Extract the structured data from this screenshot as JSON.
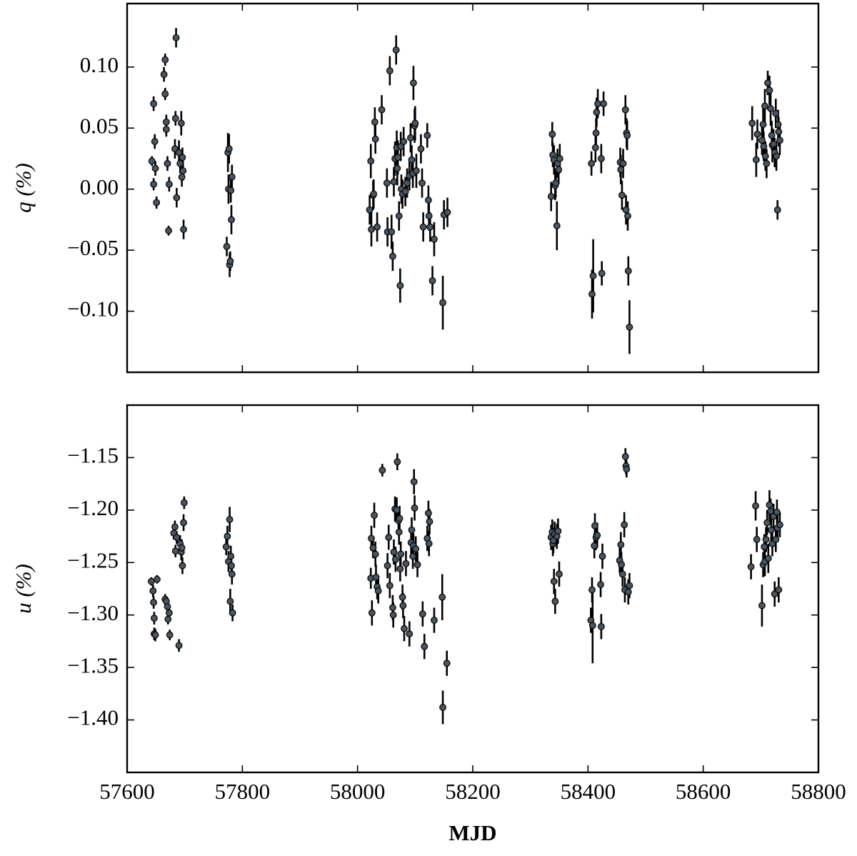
{
  "chart_data": [
    {
      "type": "scatter",
      "ylabel": "q (%)",
      "xlim": [
        57600,
        58800
      ],
      "ylim": [
        -0.15,
        0.152
      ],
      "xticks": [
        57600,
        57800,
        58000,
        58200,
        58400,
        58600,
        58800
      ],
      "show_xticklabels": false,
      "yticks": [
        {
          "value": -0.1,
          "label": "−0.10"
        },
        {
          "value": -0.05,
          "label": "−0.05"
        },
        {
          "value": 0,
          "label": "0.00"
        },
        {
          "value": 0.05,
          "label": "0.05"
        },
        {
          "value": 0.1,
          "label": "0.10"
        }
      ],
      "color": "#4a5560",
      "edgecolor": "#000000",
      "x": [
        57643,
        57646,
        57646,
        57648,
        57649,
        57651,
        57664,
        57666,
        57666,
        57668,
        57668,
        57670,
        57672,
        57673,
        57683,
        57684,
        57685,
        57686,
        57690,
        57692,
        57694,
        57695,
        57696,
        57697,
        57698,
        57773,
        57775,
        57776,
        57777,
        57778,
        57779,
        57780,
        57781,
        57782,
        58021,
        58023,
        58024,
        58027,
        58028,
        58030,
        58031,
        58034,
        58042,
        58051,
        58052,
        58056,
        58059,
        58061,
        58063,
        58065,
        58067,
        58068,
        58069,
        58070,
        58072,
        58074,
        58075,
        58076,
        58078,
        58080,
        58083,
        58086,
        58090,
        58092,
        58094,
        58096,
        58097,
        58099,
        58100,
        58102,
        58110,
        58112,
        58114,
        58121,
        58123,
        58124,
        58126,
        58130,
        58133,
        58148,
        58150,
        58156,
        58336,
        58338,
        58339,
        58341,
        58343,
        58344,
        58346,
        58347,
        58349,
        58351,
        58406,
        58407,
        58409,
        58413,
        58414,
        58415,
        58417,
        58423,
        58424,
        58427,
        58456,
        58457,
        58459,
        58461,
        58465,
        58466,
        58467,
        58468,
        58469,
        58470,
        58472,
        58685,
        58692,
        58694,
        58702,
        58704,
        58705,
        58707,
        58708,
        58710,
        58712,
        58715,
        58717,
        58719,
        58720,
        58722,
        58724,
        58726,
        58727,
        58729,
        58730,
        58731,
        58733
      ],
      "values": [
        0.023,
        0.07,
        0.004,
        0.039,
        0.017,
        -0.011,
        0.094,
        0.106,
        0.078,
        0.055,
        0.049,
        0.021,
        -0.034,
        0.004,
        0.033,
        0.058,
        0.124,
        -0.007,
        0.03,
        0.021,
        0.054,
        0.01,
        0.026,
        0.015,
        -0.033,
        -0.047,
        0.03,
        0.0,
        0.033,
        -0.062,
        -0.059,
        -0.001,
        -0.025,
        0.01,
        -0.017,
        0.023,
        -0.033,
        -0.005,
        -0.004,
        0.055,
        0.041,
        -0.031,
        0.065,
        0.005,
        -0.035,
        0.097,
        -0.035,
        -0.055,
        0.006,
        0.025,
        0.114,
        0.034,
        0.017,
        0.026,
        -0.022,
        -0.079,
        0.035,
        0.0,
        -0.004,
        0.039,
        -0.002,
        0.005,
        0.011,
        0.042,
        0.024,
        0.013,
        0.087,
        0.052,
        0.054,
        0.015,
        0.033,
        0.005,
        -0.031,
        0.044,
        -0.009,
        -0.022,
        -0.031,
        -0.075,
        -0.041,
        -0.093,
        -0.021,
        -0.019,
        -0.006,
        0.045,
        0.028,
        0.024,
        0.003,
        0.005,
        -0.03,
        0.021,
        0.016,
        0.025,
        0.021,
        -0.086,
        -0.071,
        0.034,
        0.046,
        0.063,
        0.07,
        0.025,
        -0.069,
        0.07,
        0.022,
        0.016,
        -0.005,
        0.021,
        0.065,
        -0.017,
        0.046,
        0.044,
        -0.022,
        -0.067,
        -0.113,
        0.054,
        0.024,
        0.045,
        0.04,
        0.053,
        0.035,
        0.068,
        0.027,
        0.021,
        0.087,
        0.081,
        0.066,
        0.044,
        0.036,
        0.037,
        0.03,
        0.062,
        0.027,
        -0.017,
        0.053,
        0.047,
        0.04
      ],
      "errors": [
        0.004,
        0.006,
        0.005,
        0.006,
        0.006,
        0.005,
        0.006,
        0.005,
        0.005,
        0.006,
        0.006,
        0.006,
        0.004,
        0.006,
        0.008,
        0.006,
        0.008,
        0.008,
        0.01,
        0.008,
        0.01,
        0.008,
        0.008,
        0.008,
        0.008,
        0.008,
        0.016,
        0.012,
        0.012,
        0.01,
        0.008,
        0.01,
        0.012,
        0.01,
        0.012,
        0.014,
        0.014,
        0.012,
        0.012,
        0.012,
        0.012,
        0.012,
        0.012,
        0.012,
        0.012,
        0.012,
        0.014,
        0.012,
        0.012,
        0.014,
        0.012,
        0.014,
        0.014,
        0.014,
        0.012,
        0.014,
        0.012,
        0.012,
        0.012,
        0.012,
        0.012,
        0.012,
        0.012,
        0.012,
        0.012,
        0.012,
        0.014,
        0.014,
        0.014,
        0.014,
        0.012,
        0.012,
        0.012,
        0.01,
        0.012,
        0.012,
        0.012,
        0.012,
        0.014,
        0.022,
        0.012,
        0.012,
        0.012,
        0.01,
        0.01,
        0.012,
        0.012,
        0.012,
        0.02,
        0.012,
        0.012,
        0.012,
        0.01,
        0.02,
        0.03,
        0.012,
        0.012,
        0.012,
        0.012,
        0.012,
        0.01,
        0.01,
        0.012,
        0.012,
        0.012,
        0.012,
        0.012,
        0.012,
        0.012,
        0.012,
        0.012,
        0.012,
        0.022,
        0.014,
        0.014,
        0.012,
        0.012,
        0.014,
        0.012,
        0.014,
        0.012,
        0.012,
        0.01,
        0.012,
        0.014,
        0.012,
        0.014,
        0.012,
        0.012,
        0.012,
        0.012,
        0.008,
        0.012,
        0.012,
        0.012
      ]
    },
    {
      "type": "scatter",
      "ylabel": "u (%)",
      "xlabel": "MJD",
      "xlim": [
        57600,
        58800
      ],
      "ylim": [
        -1.45,
        -1.1
      ],
      "xticks": [
        57600,
        57800,
        58000,
        58200,
        58400,
        58600,
        58800
      ],
      "show_xticklabels": true,
      "yticks": [
        {
          "value": -1.4,
          "label": "−1.40"
        },
        {
          "value": -1.35,
          "label": "−1.35"
        },
        {
          "value": -1.3,
          "label": "−1.30"
        },
        {
          "value": -1.25,
          "label": "−1.25"
        },
        {
          "value": -1.2,
          "label": "−1.20"
        },
        {
          "value": -1.15,
          "label": "−1.15"
        }
      ],
      "color": "#4a5560",
      "edgecolor": "#000000",
      "x": [
        57642,
        57645,
        57646,
        57647,
        57647,
        57649,
        57652,
        57666,
        57668,
        57670,
        57671,
        57673,
        57674,
        57681,
        57683,
        57684,
        57686,
        57690,
        57692,
        57694,
        57695,
        57696,
        57698,
        57699,
        57772,
        57774,
        57776,
        57778,
        57779,
        57780,
        57781,
        57782,
        57783,
        58023,
        58024,
        58025,
        58027,
        58029,
        58031,
        58032,
        58034,
        58036,
        58043,
        58052,
        58054,
        58056,
        58061,
        58062,
        58063,
        58065,
        58066,
        58068,
        58069,
        58071,
        58072,
        58073,
        58074,
        58075,
        58078,
        58079,
        58081,
        58084,
        58090,
        58093,
        58094,
        58096,
        58097,
        58098,
        58099,
        58101,
        58104,
        58113,
        58116,
        58121,
        58123,
        58124,
        58125,
        58133,
        58147,
        58148,
        58155,
        58336,
        58338,
        58339,
        58340,
        58341,
        58342,
        58343,
        58346,
        58348,
        58350,
        58405,
        58407,
        58408,
        58411,
        58412,
        58414,
        58416,
        58422,
        58423,
        58425,
        58455,
        58457,
        58458,
        58460,
        58463,
        58464,
        58465,
        58466,
        58467,
        58470,
        58472,
        58683,
        58691,
        58693,
        58702,
        58704,
        58706,
        58707,
        58709,
        58711,
        58713,
        58715,
        58717,
        58718,
        58720,
        58722,
        58724,
        58726,
        58728,
        58729,
        58731,
        58733
      ],
      "values": [
        -1.268,
        -1.277,
        -1.288,
        -1.303,
        -1.318,
        -1.319,
        -1.266,
        -1.285,
        -1.287,
        -1.292,
        -1.304,
        -1.298,
        -1.319,
        -1.222,
        -1.216,
        -1.239,
        -1.226,
        -1.329,
        -1.232,
        -1.24,
        -1.236,
        -1.253,
        -1.212,
        -1.193,
        -1.235,
        -1.225,
        -1.249,
        -1.209,
        -1.287,
        -1.244,
        -1.253,
        -1.261,
        -1.298,
        -1.265,
        -1.227,
        -1.298,
        -1.236,
        -1.205,
        -1.242,
        -1.264,
        -1.273,
        -1.277,
        -1.162,
        -1.253,
        -1.226,
        -1.272,
        -1.293,
        -1.3,
        -1.24,
        -1.199,
        -1.247,
        -1.2,
        -1.154,
        -1.21,
        -1.221,
        -1.208,
        -1.256,
        -1.242,
        -1.283,
        -1.291,
        -1.313,
        -1.251,
        -1.318,
        -1.231,
        -1.219,
        -1.244,
        -1.234,
        -1.173,
        -1.198,
        -1.237,
        -1.252,
        -1.299,
        -1.33,
        -1.227,
        -1.203,
        -1.232,
        -1.211,
        -1.305,
        -1.283,
        -1.388,
        -1.346,
        -1.226,
        -1.221,
        -1.232,
        -1.229,
        -1.268,
        -1.223,
        -1.287,
        -1.225,
        -1.22,
        -1.261,
        -1.305,
        -1.276,
        -1.31,
        -1.234,
        -1.215,
        -1.226,
        -1.224,
        -1.271,
        -1.311,
        -1.244,
        -1.248,
        -1.233,
        -1.252,
        -1.261,
        -1.214,
        -1.276,
        -1.149,
        -1.158,
        -1.161,
        -1.278,
        -1.272,
        -1.254,
        -1.196,
        -1.228,
        -1.291,
        -1.252,
        -1.235,
        -1.249,
        -1.228,
        -1.212,
        -1.246,
        -1.195,
        -1.201,
        -1.219,
        -1.232,
        -1.206,
        -1.28,
        -1.228,
        -1.202,
        -1.217,
        -1.276,
        -1.214
      ],
      "errors": [
        0.004,
        0.006,
        0.006,
        0.006,
        0.006,
        0.006,
        0.004,
        0.005,
        0.005,
        0.005,
        0.005,
        0.005,
        0.005,
        0.006,
        0.006,
        0.006,
        0.006,
        0.006,
        0.008,
        0.008,
        0.008,
        0.008,
        0.008,
        0.006,
        0.008,
        0.01,
        0.01,
        0.012,
        0.012,
        0.01,
        0.01,
        0.01,
        0.008,
        0.01,
        0.012,
        0.012,
        0.01,
        0.012,
        0.012,
        0.012,
        0.012,
        0.012,
        0.006,
        0.012,
        0.012,
        0.012,
        0.012,
        0.012,
        0.012,
        0.012,
        0.012,
        0.012,
        0.008,
        0.012,
        0.012,
        0.012,
        0.012,
        0.012,
        0.012,
        0.012,
        0.012,
        0.012,
        0.012,
        0.012,
        0.012,
        0.012,
        0.012,
        0.012,
        0.012,
        0.012,
        0.012,
        0.012,
        0.012,
        0.012,
        0.012,
        0.012,
        0.012,
        0.012,
        0.022,
        0.016,
        0.012,
        0.012,
        0.012,
        0.012,
        0.012,
        0.012,
        0.012,
        0.012,
        0.012,
        0.012,
        0.012,
        0.012,
        0.012,
        0.036,
        0.012,
        0.012,
        0.012,
        0.012,
        0.012,
        0.012,
        0.012,
        0.012,
        0.012,
        0.012,
        0.012,
        0.012,
        0.012,
        0.008,
        0.008,
        0.008,
        0.012,
        0.012,
        0.012,
        0.014,
        0.012,
        0.02,
        0.012,
        0.012,
        0.014,
        0.012,
        0.012,
        0.014,
        0.014,
        0.012,
        0.012,
        0.012,
        0.012,
        0.012,
        0.012,
        0.012,
        0.012,
        0.012,
        0.012
      ]
    }
  ]
}
